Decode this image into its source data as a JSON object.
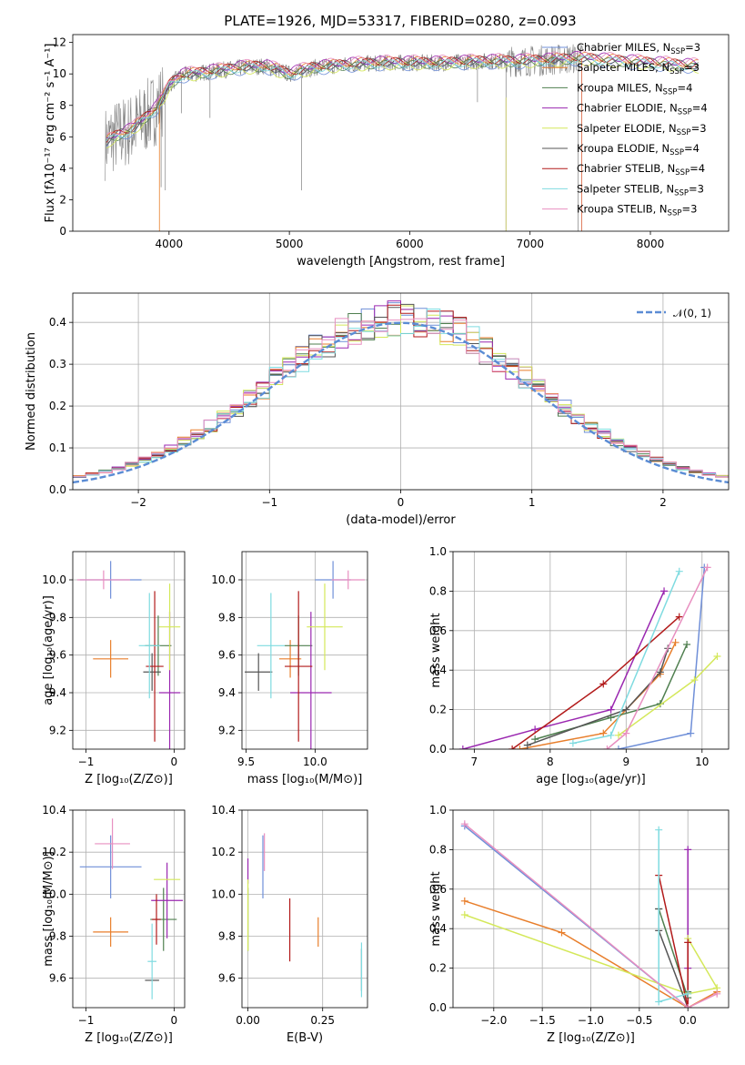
{
  "title": "PLATE=1926, MJD=53317, FIBERID=0280, z=0.093",
  "colors": {
    "c0": "#6f8fd8",
    "c1": "#e87e2b",
    "c2": "#4f7f4f",
    "c3": "#9a27b0",
    "c4": "#d4e85a",
    "c5": "#555555",
    "c6": "#b21a1a",
    "c7": "#7fdbe0",
    "c8": "#e88fc0"
  },
  "chart_data": [
    {
      "type": "line",
      "title": "PLATE=1926, MJD=53317, FIBERID=0280, z=0.093",
      "xlabel": "wavelength [Angstrom, rest frame]",
      "ylabel": "Flux [fλ10⁻¹⁷ erg cm⁻² s⁻¹ A⁻¹]",
      "xlim": [
        3200,
        8650
      ],
      "ylim": [
        0,
        12.5
      ],
      "xticks": [
        "4000",
        "5000",
        "6000",
        "7000",
        "8000"
      ],
      "yticks": [
        "0",
        "2",
        "4",
        "6",
        "8",
        "10",
        "12"
      ],
      "legend_position": "right",
      "continuum_x": [
        3470,
        3520,
        3600,
        3700,
        3800,
        3900,
        3960,
        4000,
        4100,
        4200,
        4400,
        4600,
        4800,
        5000,
        5200,
        5500,
        5800,
        6000,
        6300,
        6600,
        6900,
        7200,
        7400,
        7800,
        8200,
        8400
      ],
      "continuum_y": [
        5.6,
        5.9,
        6.2,
        6.5,
        7.2,
        7.9,
        8.6,
        9.3,
        9.9,
        10.0,
        10.2,
        10.4,
        10.5,
        10.0,
        10.4,
        10.6,
        10.7,
        10.7,
        10.7,
        10.8,
        10.8,
        10.9,
        11.0,
        10.8,
        10.6,
        10.5
      ],
      "legend": [
        {
          "label": "Chabrier MILES, N",
          "sub": "SSP",
          "tail": "=3"
        },
        {
          "label": "Salpeter MILES, N",
          "sub": "SSP",
          "tail": "=3"
        },
        {
          "label": "Kroupa MILES, N",
          "sub": "SSP",
          "tail": "=4"
        },
        {
          "label": "Chabrier ELODIE, N",
          "sub": "SSP",
          "tail": "=4"
        },
        {
          "label": "Salpeter ELODIE, N",
          "sub": "SSP",
          "tail": "=3"
        },
        {
          "label": "Kroupa ELODIE, N",
          "sub": "SSP",
          "tail": "=4"
        },
        {
          "label": "Chabrier STELIB, N",
          "sub": "SSP",
          "tail": "=4"
        },
        {
          "label": "Salpeter STELIB, N",
          "sub": "SSP",
          "tail": "=3"
        },
        {
          "label": "Kroupa STELIB, N",
          "sub": "SSP",
          "tail": "=3"
        }
      ]
    },
    {
      "type": "bar",
      "xlabel": "(data-model)/error",
      "ylabel": "Normed distribution",
      "xlim": [
        -2.5,
        2.5
      ],
      "ylim": [
        0,
        0.47
      ],
      "xticks": [
        "−2",
        "−1",
        "0",
        "1",
        "2"
      ],
      "yticks": [
        "0.0",
        "0.1",
        "0.2",
        "0.3",
        "0.4"
      ],
      "legend": "𝒩(0, 1)",
      "legend_position": "top-right",
      "bin_edges_from": -2.5,
      "bin_width": 0.1,
      "bins": 50
    },
    {
      "type": "scatter",
      "xlabel": "Z [log₁₀(Z/Z⊙)]",
      "ylabel": "age  [log₁₀(age/yr)]",
      "xlim": [
        -1.15,
        0.12
      ],
      "ylim": [
        9.1,
        10.15
      ],
      "xticks": [
        "−1",
        "0"
      ],
      "yticks": [
        "9.2",
        "9.4",
        "9.6",
        "9.8",
        "10.0"
      ],
      "points": [
        {
          "c": "c0",
          "x": -0.72,
          "xe": 0.35,
          "y": 10.0,
          "ye": 0.1
        },
        {
          "c": "c1",
          "x": -0.72,
          "xe": 0.2,
          "y": 9.58,
          "ye": 0.1
        },
        {
          "c": "c2",
          "x": -0.18,
          "xe": 0.15,
          "y": 9.65,
          "ye": 0.16
        },
        {
          "c": "c3",
          "x": -0.05,
          "xe": 0.12,
          "y": 9.4,
          "ye": 0.43
        },
        {
          "c": "c4",
          "x": -0.05,
          "xe": 0.12,
          "y": 9.75,
          "ye": 0.23
        },
        {
          "c": "c5",
          "x": -0.25,
          "xe": 0.1,
          "y": 9.51,
          "ye": 0.1
        },
        {
          "c": "c6",
          "x": -0.22,
          "xe": 0.1,
          "y": 9.54,
          "ye": 0.4
        },
        {
          "c": "c7",
          "x": -0.28,
          "xe": 0.12,
          "y": 9.65,
          "ye": 0.28
        },
        {
          "c": "c8",
          "x": -0.8,
          "xe": 0.3,
          "y": 10.0,
          "ye": 0.05
        }
      ]
    },
    {
      "type": "scatter",
      "xlabel": "mass [log₁₀(M/M⊙)]",
      "xlim": [
        9.47,
        10.38
      ],
      "ylim": [
        9.1,
        10.15
      ],
      "xticks": [
        "9.5",
        "10.0"
      ],
      "yticks": [
        "9.2",
        "9.4",
        "9.6",
        "9.8",
        "10.0"
      ],
      "points": [
        {
          "c": "c0",
          "x": 10.13,
          "xe": 0.13,
          "y": 10.0,
          "ye": 0.1
        },
        {
          "c": "c1",
          "x": 9.82,
          "xe": 0.08,
          "y": 9.58,
          "ye": 0.1
        },
        {
          "c": "c2",
          "x": 9.88,
          "xe": 0.1,
          "y": 9.65,
          "ye": 0.16
        },
        {
          "c": "c3",
          "x": 9.97,
          "xe": 0.15,
          "y": 9.4,
          "ye": 0.43
        },
        {
          "c": "c4",
          "x": 10.07,
          "xe": 0.13,
          "y": 9.75,
          "ye": 0.23
        },
        {
          "c": "c5",
          "x": 9.59,
          "xe": 0.1,
          "y": 9.51,
          "ye": 0.1
        },
        {
          "c": "c6",
          "x": 9.88,
          "xe": 0.1,
          "y": 9.54,
          "ye": 0.4
        },
        {
          "c": "c7",
          "x": 9.68,
          "xe": 0.1,
          "y": 9.65,
          "ye": 0.28
        },
        {
          "c": "c8",
          "x": 10.24,
          "xe": 0.12,
          "y": 10.0,
          "ye": 0.05
        }
      ]
    },
    {
      "type": "line",
      "xlabel": "age  [log₁₀(age/yr)]",
      "ylabel": "mass weight",
      "xlim": [
        6.72,
        10.35
      ],
      "ylim": [
        0,
        1.0
      ],
      "xticks": [
        "7",
        "8",
        "9",
        "10"
      ],
      "yticks": [
        "0.0",
        "0.2",
        "0.4",
        "0.6",
        "0.8",
        "1.0"
      ],
      "series": [
        {
          "c": "c0",
          "x": [
            8.9,
            9.85,
            10.03
          ],
          "y": [
            0.0,
            0.08,
            0.92
          ]
        },
        {
          "c": "c1",
          "x": [
            7.6,
            8.7,
            9.45,
            9.65
          ],
          "y": [
            0.0,
            0.08,
            0.38,
            0.54
          ]
        },
        {
          "c": "c2",
          "x": [
            7.8,
            8.8,
            9.45,
            9.8
          ],
          "y": [
            0.05,
            0.16,
            0.23,
            0.53
          ]
        },
        {
          "c": "c3",
          "x": [
            6.85,
            7.8,
            8.8,
            9.5
          ],
          "y": [
            0.0,
            0.1,
            0.2,
            0.8
          ]
        },
        {
          "c": "c4",
          "x": [
            8.9,
            9.9,
            10.2
          ],
          "y": [
            0.07,
            0.35,
            0.47
          ]
        },
        {
          "c": "c5",
          "x": [
            7.7,
            9.0,
            9.45,
            9.55
          ],
          "y": [
            0.02,
            0.2,
            0.39,
            0.51
          ]
        },
        {
          "c": "c6",
          "x": [
            7.5,
            8.7,
            9.7
          ],
          "y": [
            0.0,
            0.33,
            0.67
          ]
        },
        {
          "c": "c7",
          "x": [
            8.3,
            8.8,
            9.7
          ],
          "y": [
            0.03,
            0.07,
            0.9
          ]
        },
        {
          "c": "c8",
          "x": [
            8.75,
            9.0,
            10.07
          ],
          "y": [
            0.0,
            0.08,
            0.92
          ]
        }
      ]
    },
    {
      "type": "scatter",
      "xlabel": "Z [log₁₀(Z/Z⊙)]",
      "ylabel": "mass [log₁₀(M/M⊙)]",
      "xlim": [
        -1.15,
        0.12
      ],
      "ylim": [
        9.46,
        10.4
      ],
      "xticks": [
        "−1",
        "0"
      ],
      "yticks": [
        "9.6",
        "9.8",
        "10.0",
        "10.2",
        "10.4"
      ],
      "points": [
        {
          "c": "c0",
          "x": -0.72,
          "xe": 0.35,
          "y": 10.13,
          "ye": 0.15
        },
        {
          "c": "c1",
          "x": -0.72,
          "xe": 0.2,
          "y": 9.82,
          "ye": 0.07
        },
        {
          "c": "c2",
          "x": -0.12,
          "xe": 0.15,
          "y": 9.88,
          "ye": 0.15
        },
        {
          "c": "c3",
          "x": -0.08,
          "xe": 0.18,
          "y": 9.97,
          "ye": 0.18
        },
        {
          "c": "c4",
          "x": -0.08,
          "xe": 0.15,
          "y": 10.07,
          "ye": 0.0
        },
        {
          "c": "c5",
          "x": -0.25,
          "xe": 0.08,
          "y": 9.59,
          "ye": 0.0
        },
        {
          "c": "c6",
          "x": -0.2,
          "xe": 0.05,
          "y": 9.88,
          "ye": 0.12
        },
        {
          "c": "c7",
          "x": -0.25,
          "xe": 0.05,
          "y": 9.68,
          "ye": 0.18
        },
        {
          "c": "c8",
          "x": -0.7,
          "xe": 0.2,
          "y": 10.24,
          "ye": 0.12
        }
      ]
    },
    {
      "type": "scatter",
      "xlabel": "E(B-V)",
      "xlim": [
        -0.02,
        0.4
      ],
      "ylim": [
        9.46,
        10.4
      ],
      "xticks": [
        "0.00",
        "0.25"
      ],
      "yticks": [
        "9.6",
        "9.8",
        "10.0",
        "10.2",
        "10.4"
      ],
      "points": [
        {
          "c": "c0",
          "x": 0.05,
          "xe": 0.0,
          "y": 10.13,
          "ye": 0.15
        },
        {
          "c": "c1",
          "x": 0.235,
          "xe": 0.0,
          "y": 9.82,
          "ye": 0.07
        },
        {
          "c": "c2",
          "x": 0.0,
          "xe": 0.0,
          "y": 9.88,
          "ye": 0.15
        },
        {
          "c": "c3",
          "x": 0.0,
          "xe": 0.0,
          "y": 10.11,
          "ye": 0.06
        },
        {
          "c": "c4",
          "x": 0.0,
          "xe": 0.0,
          "y": 9.9,
          "ye": 0.17
        },
        {
          "c": "c5",
          "x": 0.38,
          "xe": 0.0,
          "y": 9.64,
          "ye": 0.1
        },
        {
          "c": "c6",
          "x": 0.14,
          "xe": 0.0,
          "y": 9.83,
          "ye": 0.15
        },
        {
          "c": "c7",
          "x": 0.38,
          "xe": 0.0,
          "y": 9.64,
          "ye": 0.13
        },
        {
          "c": "c8",
          "x": 0.055,
          "xe": 0.0,
          "y": 10.2,
          "ye": 0.09
        }
      ]
    },
    {
      "type": "line",
      "xlabel": "Z [log₁₀(Z/Z⊙)]",
      "ylabel": "mass weight",
      "xlim": [
        -2.42,
        0.42
      ],
      "ylim": [
        0,
        1.0
      ],
      "xticks": [
        "−2.0",
        "−1.5",
        "−1.0",
        "−0.5",
        "0.0"
      ],
      "yticks": [
        "0.0",
        "0.2",
        "0.4",
        "0.6",
        "0.8",
        "1.0"
      ],
      "series": [
        {
          "c": "c0",
          "x": [
            -2.3,
            0.0
          ],
          "y": [
            0.92,
            0.0
          ]
        },
        {
          "c": "c1",
          "x": [
            -2.3,
            -1.3,
            0.0,
            0.3
          ],
          "y": [
            0.54,
            0.38,
            0.0,
            0.08
          ]
        },
        {
          "c": "c2",
          "x": [
            -0.3,
            0.0,
            0.0
          ],
          "y": [
            0.5,
            0.05,
            0.08
          ]
        },
        {
          "c": "c3",
          "x": [
            0.0,
            0.0,
            0.0
          ],
          "y": [
            0.0,
            0.8,
            0.2
          ]
        },
        {
          "c": "c4",
          "x": [
            -2.3,
            0.0,
            0.3,
            0.0
          ],
          "y": [
            0.47,
            0.07,
            0.1,
            0.35
          ]
        },
        {
          "c": "c5",
          "x": [
            -0.3,
            -0.3,
            0.0
          ],
          "y": [
            0.5,
            0.39,
            0.0
          ]
        },
        {
          "c": "c6",
          "x": [
            -0.3,
            0.0,
            0.0
          ],
          "y": [
            0.67,
            0.0,
            0.33
          ]
        },
        {
          "c": "c7",
          "x": [
            -0.3,
            -0.3,
            0.0
          ],
          "y": [
            0.9,
            0.03,
            0.07
          ]
        },
        {
          "c": "c8",
          "x": [
            -2.3,
            0.0,
            0.3
          ],
          "y": [
            0.93,
            0.0,
            0.07
          ]
        }
      ]
    }
  ]
}
